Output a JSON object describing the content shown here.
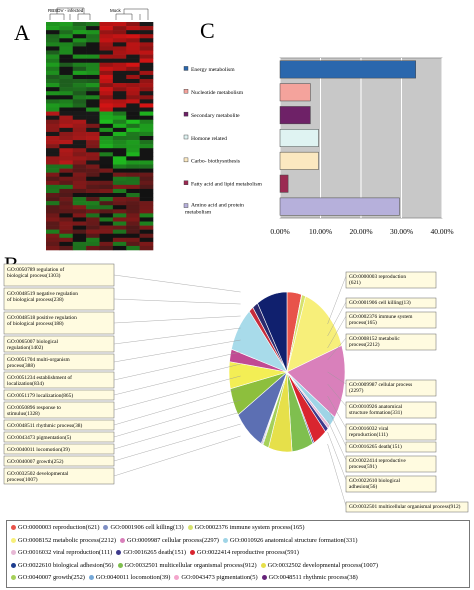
{
  "panels": {
    "a": "A",
    "b": "B",
    "c": "C"
  },
  "heatmap": {
    "group_labels": [
      "RBSDV - infected",
      "Mock"
    ]
  },
  "chart_data": [
    {
      "type": "bar",
      "orientation": "horizontal",
      "categories": [
        "Energy metabolism",
        "Nucleotide metabolism",
        "Secondary metabolite",
        "Homone related",
        "Carbo- biothysnthesis",
        "Fatty acid and lipid metabolism",
        "Amino acid and protein metabolism"
      ],
      "values": [
        33.5,
        7.5,
        7.5,
        9.5,
        9.5,
        2.0,
        29.5
      ],
      "colors": [
        "#2a67ad",
        "#f4a39c",
        "#6e2167",
        "#dff3f2",
        "#fbe8c0",
        "#9b2a52",
        "#b6b0db"
      ],
      "xlim": [
        0,
        40
      ],
      "xticks": [
        "0.00%",
        "10.00%",
        "20.00%",
        "30.00%",
        "40.00%"
      ],
      "grid": true
    },
    {
      "type": "pie",
      "slices": [
        {
          "label": "GO:0000003 reproduction(621)",
          "value": 621,
          "color": "#e8534a"
        },
        {
          "label": "GO:0001906 cell killing(13)",
          "value": 13,
          "color": "#7f8fc4"
        },
        {
          "label": "GO:0002376 immune system process(165)",
          "value": 165,
          "color": "#d6e26e"
        },
        {
          "label": "GO:0008152 metabolic process(2212)",
          "value": 2212,
          "color": "#f7ef7a"
        },
        {
          "label": "GO:0009987 cellular process(2297)",
          "value": 2297,
          "color": "#d980bb"
        },
        {
          "label": "GO:0010926 anatomical structure formation(331)",
          "value": 331,
          "color": "#9fd4e6"
        },
        {
          "label": "GO:0016032 viral reproduction(111)",
          "value": 111,
          "color": "#e7b8d5"
        },
        {
          "label": "GO:0016265 death(151)",
          "value": 151,
          "color": "#3d3a8c"
        },
        {
          "label": "GO:0022414 reproductive process(591)",
          "value": 591,
          "color": "#d9252f"
        },
        {
          "label": "GO:0022610 biological adhesion(56)",
          "value": 56,
          "color": "#1e3d8f"
        },
        {
          "label": "GO:0032501 multicellular organismal process(912)",
          "value": 912,
          "color": "#7fbf4f"
        },
        {
          "label": "GO:0032502 developmental process(1007)",
          "value": 1007,
          "color": "#e6e04a"
        },
        {
          "label": "GO:0040007 growth(252)",
          "value": 252,
          "color": "#a6d05a"
        },
        {
          "label": "GO:0040011 locomotion(39)",
          "value": 39,
          "color": "#76a9d8"
        },
        {
          "label": "GO:0043473 pigmentation(5)",
          "value": 5,
          "color": "#f4a6cc"
        },
        {
          "label": "GO:0048511 rhythmic process(38)",
          "value": 38,
          "color": "#66247a"
        },
        {
          "label": "GO:0050896 response to stimulus(1328)",
          "value": 1328,
          "color": "#5c6fb3"
        },
        {
          "label": "GO:0051179 localization(865)",
          "value": 865,
          "color": "#8dbf3d"
        },
        {
          "label": "GO:0051234 establishment of localization(834)",
          "value": 834,
          "color": "#f3ee55"
        },
        {
          "label": "GO:0051704 multi-organism process(388)",
          "value": 388,
          "color": "#c14a93"
        },
        {
          "label": "GO:0065007 biological regulation(1402)",
          "value": 1402,
          "color": "#a8dbea"
        },
        {
          "label": "GO:0048518 positive regulation of biological process(188)",
          "value": 188,
          "color": "#c72d3b"
        },
        {
          "label": "GO:0048519 negative regulation of biological process(238)",
          "value": 238,
          "color": "#2a2a6e"
        },
        {
          "label": "GO:0050789 regulation of biological process(1303)",
          "value": 1303,
          "color": "#10206e"
        }
      ]
    }
  ],
  "pie_callouts_left": [
    "GO:0050789 regulation of biological process(1303)",
    "GO:0048519 negative regulation of biological process(238)",
    "GO:0048518 positive regulation of biological process(188)",
    "GO:0065007 biological regulation(1402)",
    "GO:0051704 multi-organism process(388)",
    "GO:0051234 establishment of localization(834)",
    "GO:0051179 localization(865)",
    "GO:0050896 response to stimulus(1328)",
    "GO:0048511 rhythmic process(38)",
    "GO:0043473 pigmentation(5)",
    "GO:0040011 locomotion(39)",
    "GO:0040007 growth(252)",
    "GO:0032502 developmental process(1007)"
  ],
  "pie_callouts_right": [
    "GO:0000003 reproduction (621)",
    "GO:0001906 cell killing(13)",
    "GO:0002376 immune system process(165)",
    "GO:0008152 metabolic process(2212)",
    "GO:0009987 cellular process (2297)",
    "GO:0010926 anatomical structure formation(331)",
    "GO:0016032 viral reproduction(111)",
    "GO:0016265 death(151)",
    "GO:0022414 reproductive process(591)",
    "GO:0022610 biological adhesion(56)",
    "GO:0032501 multicellular organismal process(912)"
  ],
  "legend_rows": [
    [
      "GO:0000003 reproduction(621)",
      "GO:0001906 cell killing(13)",
      "GO:0002376 immune system process(165)"
    ],
    [
      "GO:0008152 metabolic process(2212)",
      "GO:0009987 cellular process(2297)",
      "GO:0010926 anatomical structure formation(331)"
    ],
    [
      "GO:0016032 viral reproduction(111)",
      "GO:0016265 death(151)",
      "GO:0022414 reproductive process(591)"
    ],
    [
      "GO:0022610 biological adhesion(56)",
      "GO:0032501 multicellular organismal process(912)",
      "GO:0032502 developmental process(1007)"
    ],
    [
      "GO:0040007 growth(252)",
      "GO:0040011 locomotion(39)",
      "GO:0043473 pigmentation(5)",
      "GO:0048511 rhythmic process(38)"
    ]
  ],
  "legend_row_colors": [
    [
      "#e8534a",
      "#7f8fc4",
      "#d6e26e"
    ],
    [
      "#f7ef7a",
      "#d980bb",
      "#9fd4e6"
    ],
    [
      "#e7b8d5",
      "#3d3a8c",
      "#d9252f"
    ],
    [
      "#1e3d8f",
      "#7fbf4f",
      "#e6e04a"
    ],
    [
      "#a6d05a",
      "#76a9d8",
      "#f4a6cc",
      "#66247a"
    ]
  ]
}
